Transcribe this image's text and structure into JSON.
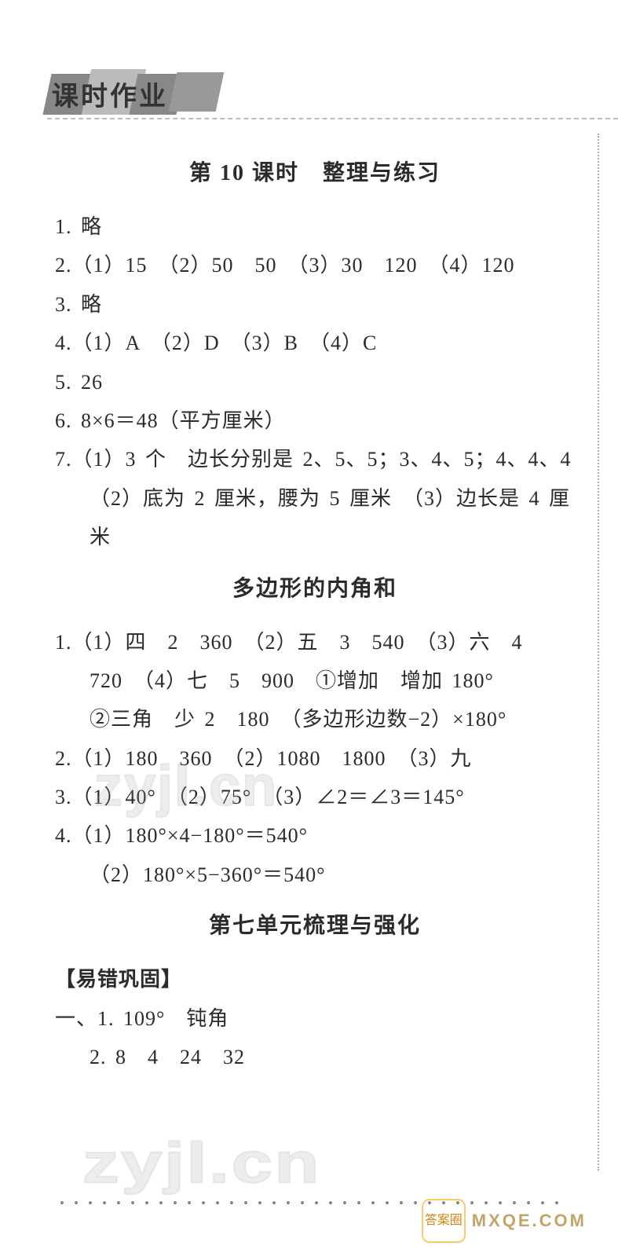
{
  "colors": {
    "page_bg": "#ffffff",
    "text": "#2b2b2b",
    "header_block": "#999999",
    "dash": "#bbbbbb",
    "watermark": "#aaaaaa",
    "footer_accent": "#d08000"
  },
  "typography": {
    "body_fontsize_pt": 20,
    "title_fontsize_pt": 21,
    "header_fontsize_pt": 25,
    "line_height": 1.9
  },
  "header": {
    "label": "课时作业"
  },
  "sections": {
    "lesson_title": "第 10 课时　整理与练习",
    "lesson_items": {
      "q1": "1. 略",
      "q2": "2.（1）15　（2）50　50　（3）30　120　（4）120",
      "q3": "3. 略",
      "q4": "4.（1）A　（2）D　（3）B　（4）C",
      "q5": "5. 26",
      "q6": "6. 8×6＝48（平方厘米）",
      "q7a": "7.（1）3 个　边长分别是 2、5、5；3、4、5；4、4、4",
      "q7b": "（2）底为 2 厘米，腰为 5 厘米　（3）边长是 4 厘米"
    },
    "polygon_title": "多边形的内角和",
    "polygon_items": {
      "p1a": "1.（1）四　2　360　（2）五　3　540　（3）六　4",
      "p1b": "720　（4）七　5　900　①增加　增加 180°",
      "p1c": "②三角　少 2　180　（多边形边数−2）×180°",
      "p2": "2.（1）180　360　（2）1080　1800　（3）九",
      "p3": "3.（1）40°　（2）75°　（3）∠2＝∠3＝145°",
      "p4a": "4.（1）180°×4−180°＝540°",
      "p4b": "（2）180°×5−360°＝540°"
    },
    "unit7_title": "第七单元梳理与强化",
    "unit7_sub": "【易错巩固】",
    "unit7_items": {
      "u1": "一、1. 109°　钝角",
      "u2": "2. 8　4　24　32"
    }
  },
  "watermarks": {
    "wm1": "zyjl.cn",
    "wm2": "zyjl.cn"
  },
  "footer": {
    "logo_text": "答案圈",
    "site": "MXQE.COM"
  }
}
